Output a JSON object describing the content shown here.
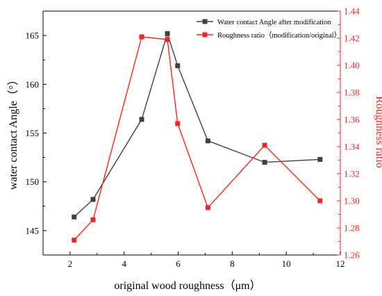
{
  "chart_data": {
    "type": "line",
    "xlabel": "original wood roughness（μm）",
    "ylabel_left": "water contact Angle（°）",
    "ylabel_right": "Roughness ratio",
    "xlim": [
      1,
      12
    ],
    "ylim_left": [
      142.5,
      167.5
    ],
    "ylim_right": [
      1.26,
      1.44
    ],
    "x_ticks": [
      2,
      4,
      6,
      8,
      10,
      12
    ],
    "y_left_ticks": [
      145,
      150,
      155,
      160,
      165
    ],
    "y_right_ticks": [
      1.26,
      1.28,
      1.3,
      1.32,
      1.34,
      1.36,
      1.38,
      1.4,
      1.42,
      1.44
    ],
    "x_tick_labels": [
      "2",
      "4",
      "6",
      "8",
      "10",
      "12"
    ],
    "y_left_tick_labels": [
      "145",
      "150",
      "155",
      "160",
      "165"
    ],
    "y_right_tick_labels": [
      "1.26",
      "1.28",
      "1.30",
      "1.32",
      "1.34",
      "1.36",
      "1.38",
      "1.40",
      "1.42",
      "1.44"
    ],
    "legend_position": "top-right",
    "grid": false,
    "series": [
      {
        "name": "Water contact Angle after modification",
        "axis": "left",
        "color": "#404040",
        "marker": "square",
        "x": [
          2.15,
          2.85,
          4.65,
          5.6,
          5.98,
          7.1,
          9.2,
          11.25
        ],
        "y": [
          146.4,
          148.2,
          156.4,
          165.2,
          161.9,
          154.2,
          152.0,
          152.3
        ]
      },
      {
        "name": "Roughness ratio（modification/original）",
        "axis": "right",
        "color": "#ff2020",
        "marker": "square",
        "x": [
          2.15,
          2.85,
          4.65,
          5.6,
          5.98,
          7.1,
          9.2,
          11.25
        ],
        "y": [
          1.271,
          1.286,
          1.421,
          1.419,
          1.357,
          1.295,
          1.341,
          1.3
        ]
      }
    ]
  }
}
